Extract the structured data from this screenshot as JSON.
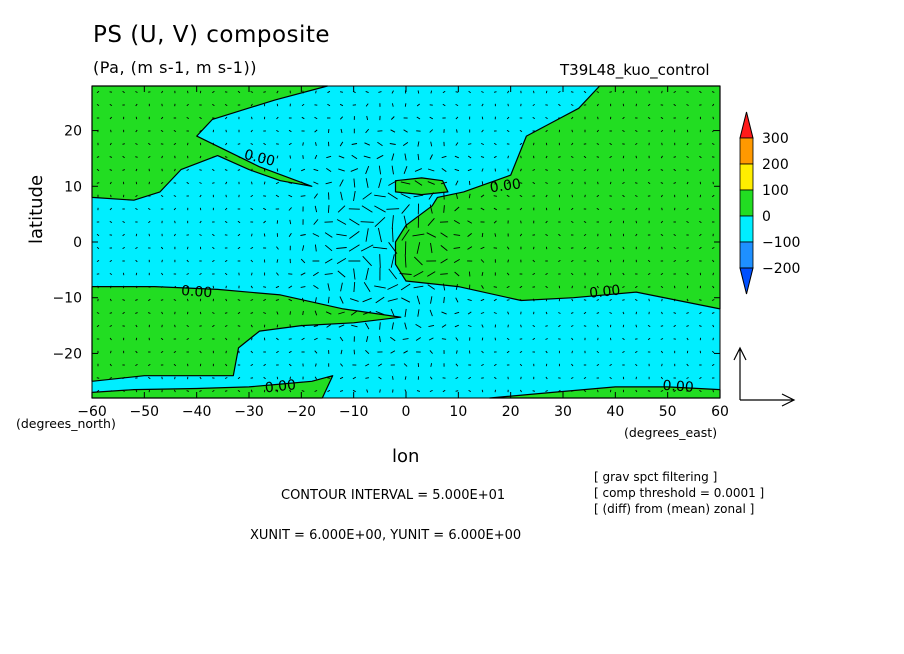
{
  "header": {
    "title": "PS (U, V) composite",
    "units": "(Pa, (m s-1, m s-1))",
    "run_id": "T39L48_kuo_control"
  },
  "footer": {
    "contour_interval": "CONTOUR INTERVAL = 5.000E+01",
    "vector_units": "XUNIT = 6.000E+00, YUNIT = 6.000E+00",
    "notes": [
      "[ grav spct filtering ]",
      "[ comp threshold = 0.0001 ]",
      "[ (diff) from (mean) zonal ]"
    ]
  },
  "colors": {
    "positive": "#22dd22",
    "negative": "#00eeff",
    "n200": "#1e90ff",
    "n300": "#0050ff",
    "p300": "#ff1a1a",
    "p200": "#ff9900",
    "p100": "#ffee00"
  },
  "chart_data": {
    "type": "contour",
    "title": "PS (U, V) composite",
    "xlabel": "lon",
    "ylabel": "latitude",
    "x_units": "(degrees_east)",
    "y_units": "(degrees_north)",
    "xlim": [
      -60,
      60
    ],
    "ylim": [
      -28,
      28
    ],
    "xticks": [
      -60,
      -50,
      -40,
      -30,
      -20,
      -10,
      0,
      10,
      20,
      30,
      40,
      50,
      60
    ],
    "yticks": [
      -20,
      -10,
      0,
      10,
      20
    ],
    "contour_label": "0.00",
    "contour_label_positions": [
      [
        -28,
        15
      ],
      [
        19,
        10
      ],
      [
        -40,
        -9
      ],
      [
        38,
        -9
      ],
      [
        -24,
        -26
      ],
      [
        52,
        -26
      ]
    ],
    "colorbar": {
      "levels": [
        "300",
        "200",
        "100",
        "0",
        "-100",
        "-200"
      ],
      "bands": [
        {
          "range": [
            200,
            300
          ],
          "color": "#ff9900"
        },
        {
          "range": [
            100,
            200
          ],
          "color": "#ffee00"
        },
        {
          "range": [
            0,
            100
          ],
          "color": "#22dd22"
        },
        {
          "range": [
            -100,
            0
          ],
          "color": "#00eeff"
        },
        {
          "range": [
            -200,
            -100
          ],
          "color": "#1e90ff"
        }
      ],
      "overflow_high": "#ff1a1a",
      "overflow_low": "#0050ff"
    },
    "positive_regions": [
      [
        [
          -60,
          8
        ],
        [
          -52,
          7.5
        ],
        [
          -47,
          9
        ],
        [
          -43,
          13
        ],
        [
          -36,
          15.5
        ],
        [
          -30,
          13
        ],
        [
          -24,
          11
        ],
        [
          -18,
          10
        ],
        [
          -28,
          13.5
        ],
        [
          -40,
          19
        ],
        [
          -37,
          22
        ],
        [
          -25,
          25.5
        ],
        [
          -15,
          28
        ],
        [
          -60,
          28
        ]
      ],
      [
        [
          -2,
          11
        ],
        [
          3,
          11.5
        ],
        [
          7,
          11
        ],
        [
          8,
          9
        ],
        [
          3,
          8.5
        ],
        [
          -2,
          9
        ]
      ],
      [
        [
          37,
          28
        ],
        [
          33,
          24
        ],
        [
          27,
          21
        ],
        [
          23,
          19
        ],
        [
          20,
          12
        ],
        [
          11,
          9
        ],
        [
          6,
          8
        ],
        [
          5,
          6.5
        ],
        [
          0,
          3
        ],
        [
          -2,
          0
        ],
        [
          -2,
          -4
        ],
        [
          0,
          -7
        ],
        [
          10,
          -8
        ],
        [
          22,
          -10.5
        ],
        [
          32,
          -10
        ],
        [
          44,
          -9
        ],
        [
          60,
          -12
        ],
        [
          60,
          28
        ]
      ],
      [
        [
          -60,
          -8
        ],
        [
          -48,
          -8
        ],
        [
          -36,
          -8.5
        ],
        [
          -24,
          -9.5
        ],
        [
          -12,
          -12
        ],
        [
          -1,
          -13.5
        ],
        [
          -10,
          -14.5
        ],
        [
          -20,
          -15
        ],
        [
          -28,
          -16
        ],
        [
          -32,
          -19
        ],
        [
          -33,
          -24
        ],
        [
          -38,
          -24
        ],
        [
          -50,
          -24
        ],
        [
          -60,
          -25
        ]
      ],
      [
        [
          -60,
          -28
        ],
        [
          -60,
          -27
        ],
        [
          -52,
          -26.5
        ],
        [
          -40,
          -26.3
        ],
        [
          -30,
          -26
        ],
        [
          -24,
          -25.5
        ],
        [
          -18,
          -25
        ],
        [
          -14,
          -24
        ],
        [
          -16,
          -28
        ]
      ],
      [
        [
          16,
          -28
        ],
        [
          28,
          -27
        ],
        [
          40,
          -26
        ],
        [
          50,
          -26
        ],
        [
          60,
          -26.5
        ],
        [
          60,
          -28
        ]
      ]
    ],
    "wind_vectors": "regular grid of small arrows (anomalous U,V wind), strongest near lon -8..0, lat -15..15"
  }
}
